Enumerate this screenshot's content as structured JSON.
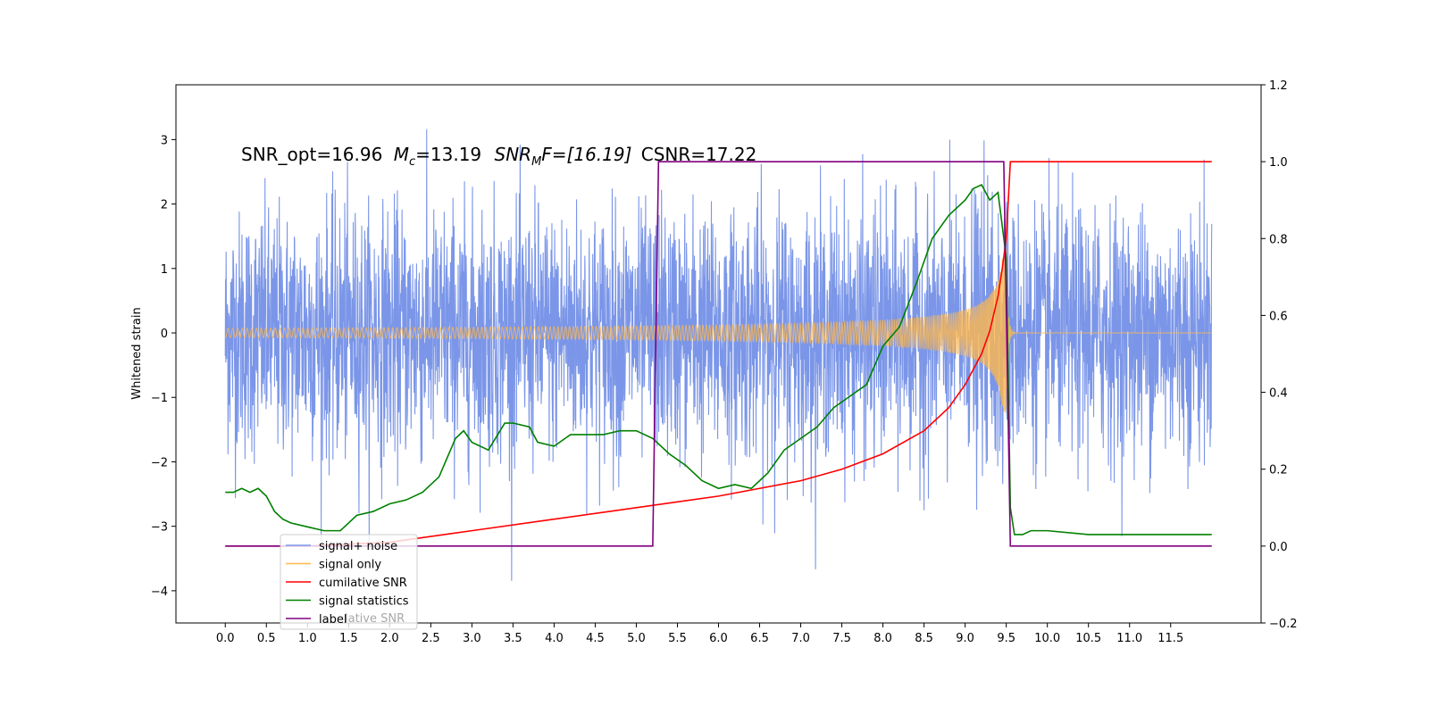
{
  "chart_data": {
    "type": "line",
    "title_parts": {
      "snr_opt": "SNR_opt=16.96",
      "mc_symbol": "M",
      "mc_sub": "c",
      "mc_value": "=13.19",
      "snr_mf_symbol": "SNR",
      "snr_mf_sub": "M",
      "snr_mf_value": "F=[16.19]",
      "csnr": "CSNR=17.22"
    },
    "ylabel_left": "Whitened strain",
    "xlim": [
      -0.6,
      12.6
    ],
    "ylim_left": [
      -4.5,
      3.85
    ],
    "ylim_right": [
      -0.2,
      1.2
    ],
    "x_ticks": [
      "0.0",
      "0.5",
      "1.0",
      "1.5",
      "2.0",
      "2.5",
      "3.0",
      "3.5",
      "4.0",
      "4.5",
      "5.0",
      "5.5",
      "6.0",
      "6.5",
      "7.0",
      "7.5",
      "8.0",
      "8.5",
      "9.0",
      "9.5",
      "10.0",
      "10.5",
      "11.0",
      "11.5"
    ],
    "y_left_ticks": [
      "3",
      "2",
      "1",
      "0",
      "−1",
      "−2",
      "−3",
      "−4"
    ],
    "y_right_ticks": [
      "1.2",
      "1.0",
      "0.8",
      "0.6",
      "0.4",
      "0.2",
      "0.0",
      "−0.2"
    ],
    "legend_position": "lower-left",
    "legend_overlap_text": "lative SNR",
    "series": [
      {
        "name": "signal+ noise",
        "color": "#7b96e8",
        "axis": "left",
        "x_range": [
          0,
          12
        ],
        "std": 0.95
      },
      {
        "name": "signal only",
        "color": "#ffb84d",
        "axis": "left",
        "x_range": [
          0,
          12
        ],
        "merger_x": 9.5,
        "peak_amplitude": 1.3
      },
      {
        "name": "cumilative SNR",
        "color": "#ff0000",
        "axis": "right",
        "x": [
          0,
          1,
          2,
          3,
          4,
          5,
          6,
          7,
          7.5,
          8,
          8.5,
          8.8,
          9.0,
          9.2,
          9.3,
          9.4,
          9.45,
          9.5,
          9.55,
          12
        ],
        "y": [
          0.0,
          0.0,
          0.01,
          0.04,
          0.07,
          0.1,
          0.13,
          0.17,
          0.2,
          0.24,
          0.3,
          0.36,
          0.42,
          0.5,
          0.56,
          0.65,
          0.72,
          0.8,
          1.0,
          1.0
        ]
      },
      {
        "name": "signal statistics",
        "color": "#008000",
        "axis": "right",
        "x": [
          0,
          0.1,
          0.2,
          0.3,
          0.4,
          0.5,
          0.6,
          0.7,
          0.8,
          1.0,
          1.2,
          1.4,
          1.6,
          1.8,
          2.0,
          2.2,
          2.4,
          2.6,
          2.8,
          2.9,
          3.0,
          3.2,
          3.4,
          3.5,
          3.7,
          3.8,
          4.0,
          4.2,
          4.4,
          4.6,
          4.8,
          5.0,
          5.2,
          5.4,
          5.6,
          5.8,
          6.0,
          6.2,
          6.4,
          6.6,
          6.8,
          7.0,
          7.2,
          7.4,
          7.6,
          7.8,
          8.0,
          8.2,
          8.4,
          8.6,
          8.8,
          9.0,
          9.1,
          9.2,
          9.3,
          9.4,
          9.5,
          9.55,
          9.6,
          9.7,
          9.8,
          10.0,
          10.5,
          11.0,
          11.5,
          12.0
        ],
        "y": [
          0.14,
          0.14,
          0.15,
          0.14,
          0.15,
          0.13,
          0.09,
          0.07,
          0.06,
          0.05,
          0.04,
          0.04,
          0.08,
          0.09,
          0.11,
          0.12,
          0.14,
          0.18,
          0.28,
          0.3,
          0.27,
          0.25,
          0.32,
          0.32,
          0.31,
          0.27,
          0.26,
          0.29,
          0.29,
          0.29,
          0.3,
          0.3,
          0.28,
          0.24,
          0.21,
          0.17,
          0.15,
          0.16,
          0.15,
          0.19,
          0.25,
          0.28,
          0.31,
          0.36,
          0.39,
          0.42,
          0.52,
          0.57,
          0.68,
          0.8,
          0.86,
          0.9,
          0.93,
          0.94,
          0.9,
          0.92,
          0.75,
          0.1,
          0.03,
          0.03,
          0.04,
          0.04,
          0.03,
          0.03,
          0.03,
          0.03
        ]
      },
      {
        "name": "label",
        "color": "#800080",
        "axis": "right",
        "x": [
          0,
          5.2,
          5.27,
          9.47,
          9.55,
          12
        ],
        "y": [
          0.0,
          0.0,
          1.0,
          1.0,
          0.0,
          0.0
        ]
      }
    ]
  }
}
